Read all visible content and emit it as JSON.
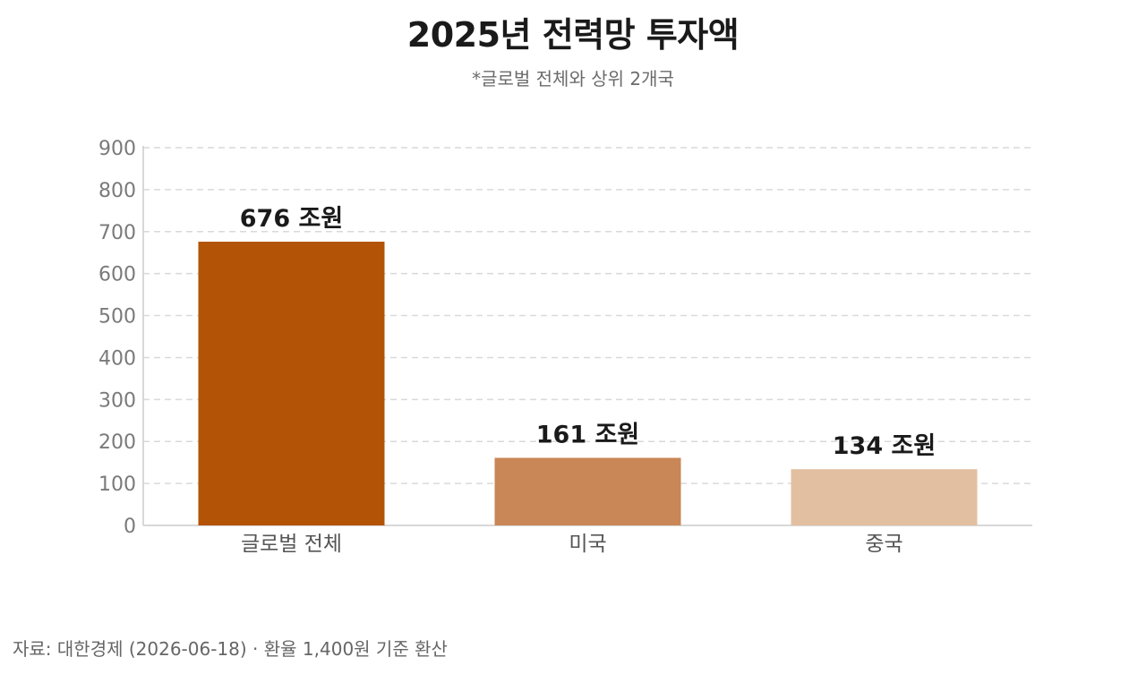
{
  "title": "2025년 전력망 투자액",
  "subtitle": "*글로벌 전체와 상위 2개국",
  "source": "자료: 대한경제 (2026-06-18) · 환율 1,400원 기준 환산",
  "colors": {
    "bar_global": "#b35306",
    "bar_us": "#c98656",
    "bar_china": "#e3bfa1",
    "grid": "#d9d9d9",
    "axis": "#cccccc"
  },
  "chart_data": {
    "type": "bar",
    "categories": [
      "글로벌 전체",
      "미국",
      "중국"
    ],
    "values": [
      676,
      161,
      134
    ],
    "data_labels": [
      "676 조원",
      "161 조원",
      "134 조원"
    ],
    "bar_colors": [
      "#b35306",
      "#c98656",
      "#e3bfa1"
    ],
    "ylim": [
      0,
      900
    ],
    "yticks": [
      0,
      100,
      200,
      300,
      400,
      500,
      600,
      700,
      800,
      900
    ],
    "grid": true,
    "grid_style": "dashed",
    "legend": false
  }
}
